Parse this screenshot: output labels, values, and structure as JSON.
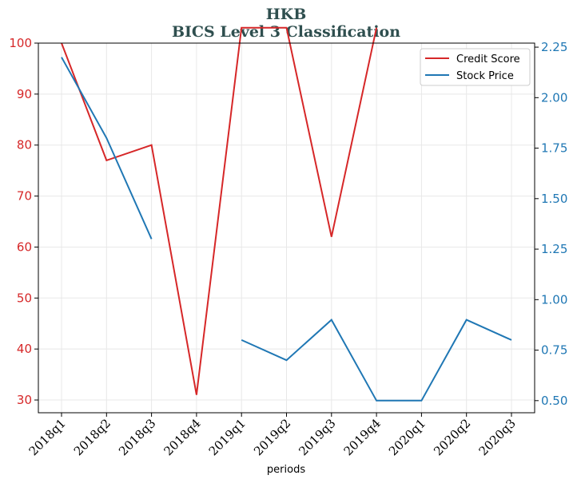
{
  "chart_data": {
    "type": "line",
    "title": "HKB",
    "subtitle": "BICS Level 3 Classification",
    "xlabel": "periods",
    "categories": [
      "2018q1",
      "2018q2",
      "2018q3",
      "2018q4",
      "2019q1",
      "2019q2",
      "2019q3",
      "2019q4",
      "2020q1",
      "2020q2",
      "2020q3"
    ],
    "ylim_left": [
      27.5,
      100
    ],
    "yticks_left": [
      30,
      40,
      50,
      60,
      70,
      80,
      90,
      100
    ],
    "ylim_right": [
      0.44,
      2.27
    ],
    "yticks_right": [
      "0.50",
      "0.75",
      "1.00",
      "1.25",
      "1.50",
      "1.75",
      "2.00",
      "2.25"
    ],
    "grid": true,
    "legend_position": "top-right",
    "series": [
      {
        "name": "Credit Score",
        "axis": "left",
        "color": "#d62728",
        "values": [
          100,
          77,
          80,
          31,
          103,
          103,
          62,
          103,
          null,
          null,
          null
        ]
      },
      {
        "name": "Stock Price",
        "axis": "right",
        "color": "#1f77b4",
        "values": [
          2.2,
          1.8,
          1.3,
          null,
          0.8,
          0.7,
          0.9,
          0.5,
          0.5,
          0.9,
          0.8
        ]
      }
    ]
  }
}
